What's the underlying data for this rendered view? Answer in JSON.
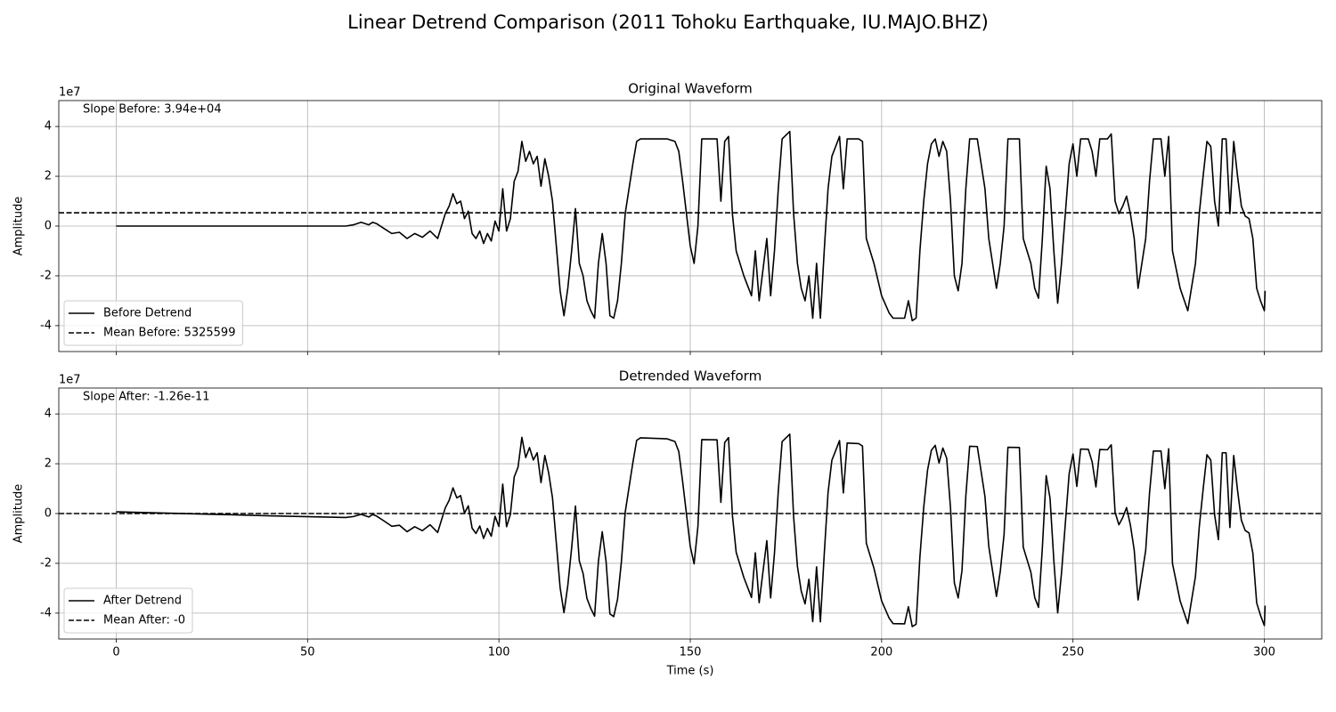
{
  "title": "Linear Detrend Comparison (2011 Tohoku Earthquake, IU.MAJO.BHZ)",
  "chart_data": [
    {
      "type": "line",
      "title": "Original Waveform",
      "ylabel": "Amplitude",
      "offset_text": "1e7",
      "annotation": "Slope Before: 3.94e+04",
      "xlim": [
        -15,
        315
      ],
      "xticks": [
        0,
        50,
        100,
        150,
        200,
        250,
        300
      ],
      "show_xtick_labels": false,
      "ylim": [
        -5.04,
        5.04
      ],
      "yticks": [
        -4,
        -2,
        0,
        2,
        4
      ],
      "grid": true,
      "legend_loc": "lower left",
      "x": [
        0,
        20,
        40,
        60,
        62,
        64,
        66,
        67,
        68,
        70,
        72,
        74,
        76,
        78,
        80,
        82,
        84,
        85,
        86,
        87,
        88,
        89,
        90,
        91,
        92,
        93,
        94,
        95,
        96,
        97,
        98,
        99,
        100,
        101,
        102,
        103,
        104,
        105,
        106,
        107,
        108,
        109,
        110,
        111,
        112,
        113,
        114,
        115,
        116,
        117,
        118,
        119,
        120,
        121,
        122,
        123,
        124,
        125,
        126,
        127,
        128,
        129,
        130,
        131,
        132,
        133,
        134,
        135,
        136,
        137,
        144,
        146,
        147,
        148,
        149,
        150,
        151,
        152,
        153,
        157,
        158,
        159,
        160,
        161,
        162,
        164,
        166,
        167,
        168,
        170,
        171,
        172,
        173,
        174,
        176,
        177,
        178,
        179,
        180,
        181,
        182,
        183,
        184,
        185,
        186,
        187,
        188,
        189,
        190,
        191,
        194,
        195,
        196,
        198,
        200,
        202,
        203,
        206,
        207,
        208,
        209,
        210,
        211,
        212,
        213,
        214,
        215,
        216,
        217,
        218,
        219,
        220,
        221,
        222,
        223,
        225,
        226,
        227,
        228,
        229,
        230,
        231,
        232,
        233,
        236,
        237,
        239,
        240,
        241,
        242,
        243,
        244,
        245,
        246,
        247,
        248,
        249,
        250,
        251,
        252,
        254,
        255,
        256,
        257,
        259,
        260,
        261,
        262,
        263,
        264,
        265,
        266,
        267,
        268,
        269,
        270,
        271,
        273,
        274,
        275,
        276,
        278,
        280,
        282,
        283,
        284,
        285,
        286,
        287,
        288,
        289,
        290,
        291,
        292,
        293,
        294,
        295,
        296,
        297,
        298,
        299,
        300,
        300.2
      ],
      "series": [
        {
          "name": "Before Detrend",
          "color": "#000000",
          "values": [
            0,
            0,
            0,
            0,
            0.05,
            0.15,
            0.05,
            0.15,
            0.1,
            -0.1,
            -0.3,
            -0.25,
            -0.5,
            -0.3,
            -0.45,
            -0.2,
            -0.5,
            0,
            0.5,
            0.8,
            1.3,
            0.9,
            1.0,
            0.3,
            0.6,
            -0.3,
            -0.5,
            -0.2,
            -0.7,
            -0.3,
            -0.6,
            0.2,
            -0.2,
            1.5,
            -0.2,
            0.3,
            1.8,
            2.2,
            3.4,
            2.6,
            3.0,
            2.5,
            2.8,
            1.6,
            2.7,
            2.0,
            1.0,
            -0.8,
            -2.6,
            -3.6,
            -2.5,
            -1.0,
            0.7,
            -1.5,
            -2.0,
            -3.0,
            -3.4,
            -3.7,
            -1.5,
            -0.3,
            -1.5,
            -3.6,
            -3.7,
            -3.0,
            -1.5,
            0.5,
            1.5,
            2.5,
            3.4,
            3.5,
            3.5,
            3.4,
            3.0,
            1.8,
            0.5,
            -0.8,
            -1.5,
            0.0,
            3.5,
            3.5,
            1.0,
            3.4,
            3.6,
            0.5,
            -1.0,
            -2.0,
            -2.8,
            -1.0,
            -3.0,
            -0.5,
            -2.8,
            -1.0,
            1.5,
            3.5,
            3.8,
            0.5,
            -1.5,
            -2.5,
            -3.0,
            -2.0,
            -3.7,
            -1.5,
            -3.7,
            -1.0,
            1.5,
            2.8,
            3.2,
            3.6,
            1.5,
            3.5,
            3.5,
            3.4,
            -0.5,
            -1.5,
            -2.8,
            -3.5,
            -3.7,
            -3.7,
            -3.0,
            -3.8,
            -3.7,
            -1.0,
            1.0,
            2.5,
            3.3,
            3.5,
            2.8,
            3.4,
            3.0,
            1.0,
            -2.0,
            -2.6,
            -1.5,
            1.5,
            3.5,
            3.5,
            2.5,
            1.5,
            -0.5,
            -1.5,
            -2.5,
            -1.5,
            0.0,
            3.5,
            3.5,
            -0.5,
            -1.5,
            -2.5,
            -2.9,
            -0.5,
            2.4,
            1.5,
            -1.0,
            -3.1,
            -1.5,
            0.5,
            2.5,
            3.3,
            2.0,
            3.5,
            3.5,
            3.0,
            2.0,
            3.5,
            3.5,
            3.7,
            1.0,
            0.5,
            0.8,
            1.2,
            0.5,
            -0.5,
            -2.5,
            -1.5,
            -0.5,
            1.8,
            3.5,
            3.5,
            2.0,
            3.6,
            -1.0,
            -2.5,
            -3.4,
            -1.5,
            0.5,
            2.0,
            3.4,
            3.2,
            1.0,
            0.0,
            3.5,
            3.5,
            0.5,
            3.4,
            2.0,
            0.8,
            0.4,
            0.3,
            -0.5,
            -2.5,
            -3.0,
            -3.4,
            -2.6
          ]
        }
      ],
      "mean_line": {
        "name": "Mean Before: 5325599",
        "value": 0.5325599,
        "color": "#000000",
        "style": "dashed"
      }
    },
    {
      "type": "line",
      "title": "Detrended Waveform",
      "ylabel": "Amplitude",
      "offset_text": "1e7",
      "annotation": "Slope After: -1.26e-11",
      "xlabel": "Time (s)",
      "xlim": [
        -15,
        315
      ],
      "xticks": [
        0,
        50,
        100,
        150,
        200,
        250,
        300
      ],
      "show_xtick_labels": true,
      "ylim": [
        -5.04,
        5.04
      ],
      "yticks": [
        -4,
        -2,
        0,
        2,
        4
      ],
      "grid": true,
      "legend_loc": "lower left",
      "x": [
        0,
        20,
        40,
        60,
        62,
        64,
        66,
        67,
        68,
        70,
        72,
        74,
        76,
        78,
        80,
        82,
        84,
        85,
        86,
        87,
        88,
        89,
        90,
        91,
        92,
        93,
        94,
        95,
        96,
        97,
        98,
        99,
        100,
        101,
        102,
        103,
        104,
        105,
        106,
        107,
        108,
        109,
        110,
        111,
        112,
        113,
        114,
        115,
        116,
        117,
        118,
        119,
        120,
        121,
        122,
        123,
        124,
        125,
        126,
        127,
        128,
        129,
        130,
        131,
        132,
        133,
        134,
        135,
        136,
        137,
        144,
        146,
        147,
        148,
        149,
        150,
        151,
        152,
        153,
        157,
        158,
        159,
        160,
        161,
        162,
        164,
        166,
        167,
        168,
        170,
        171,
        172,
        173,
        174,
        176,
        177,
        178,
        179,
        180,
        181,
        182,
        183,
        184,
        185,
        186,
        187,
        188,
        189,
        190,
        191,
        194,
        195,
        196,
        198,
        200,
        202,
        203,
        206,
        207,
        208,
        209,
        210,
        211,
        212,
        213,
        214,
        215,
        216,
        217,
        218,
        219,
        220,
        221,
        222,
        223,
        225,
        226,
        227,
        228,
        229,
        230,
        231,
        232,
        233,
        236,
        237,
        239,
        240,
        241,
        242,
        243,
        244,
        245,
        246,
        247,
        248,
        249,
        250,
        251,
        252,
        254,
        255,
        256,
        257,
        259,
        260,
        261,
        262,
        263,
        264,
        265,
        266,
        267,
        268,
        269,
        270,
        271,
        273,
        274,
        275,
        276,
        278,
        280,
        282,
        283,
        284,
        285,
        286,
        287,
        288,
        289,
        290,
        291,
        292,
        293,
        294,
        295,
        296,
        297,
        298,
        299,
        300,
        300.2
      ],
      "series": [
        {
          "name": "After Detrend",
          "color": "#000000",
          "values": [
            0.07,
            -0.01,
            -0.09,
            -0.16,
            -0.12,
            -0.03,
            -0.14,
            -0.04,
            -0.1,
            -0.3,
            -0.51,
            -0.47,
            -0.73,
            -0.53,
            -0.69,
            -0.45,
            -0.76,
            -0.26,
            0.23,
            0.53,
            1.03,
            0.63,
            0.72,
            0.02,
            0.31,
            -0.59,
            -0.8,
            -0.5,
            -1.0,
            -0.6,
            -0.91,
            -0.11,
            -0.52,
            1.18,
            -0.53,
            -0.03,
            1.47,
            1.86,
            3.06,
            2.25,
            2.65,
            2.15,
            2.44,
            1.24,
            2.33,
            1.63,
            0.63,
            -1.18,
            -2.98,
            -3.98,
            -2.89,
            -1.39,
            0.3,
            -1.9,
            -2.41,
            -3.41,
            -3.81,
            -4.12,
            -1.92,
            -0.73,
            -1.93,
            -4.03,
            -4.14,
            -3.44,
            -1.94,
            0.05,
            1.05,
            2.04,
            2.94,
            3.04,
            3.0,
            2.89,
            2.49,
            1.29,
            -0.01,
            -1.32,
            -2.02,
            -0.52,
            2.97,
            2.96,
            0.45,
            2.85,
            3.05,
            -0.05,
            -1.56,
            -2.57,
            -3.37,
            -1.58,
            -3.58,
            -1.09,
            -3.39,
            -1.6,
            0.9,
            2.89,
            3.19,
            -0.12,
            -2.12,
            -3.12,
            -3.63,
            -2.64,
            -4.34,
            -2.14,
            -4.35,
            -1.65,
            0.84,
            2.14,
            2.53,
            2.93,
            0.83,
            2.83,
            2.81,
            2.71,
            -1.19,
            -2.2,
            -3.51,
            -4.21,
            -4.42,
            -4.43,
            -3.74,
            -4.54,
            -4.45,
            -1.75,
            0.25,
            1.74,
            2.54,
            2.74,
            2.03,
            2.63,
            2.22,
            0.22,
            -2.78,
            -3.39,
            -2.29,
            0.7,
            2.7,
            2.69,
            1.69,
            0.68,
            -1.32,
            -2.32,
            -3.33,
            -2.33,
            -0.83,
            2.66,
            2.65,
            -1.35,
            -2.36,
            -3.37,
            -3.77,
            -1.37,
            1.52,
            0.62,
            -1.89,
            -3.99,
            -2.39,
            -0.4,
            1.6,
            2.39,
            1.09,
            2.59,
            2.58,
            2.08,
            1.07,
            2.57,
            2.56,
            2.76,
            0.05,
            -0.45,
            -0.16,
            0.24,
            -0.46,
            -1.47,
            -3.47,
            -2.48,
            -1.48,
            0.82,
            2.51,
            2.51,
            1.0,
            2.6,
            -2.01,
            -3.51,
            -4.42,
            -2.53,
            -0.53,
            0.96,
            2.36,
            2.15,
            -0.05,
            -1.05,
            2.44,
            2.44,
            -0.56,
            2.33,
            0.93,
            -0.27,
            -0.68,
            -0.78,
            -1.59,
            -3.59,
            -4.09,
            -4.5,
            -3.7
          ]
        }
      ],
      "mean_line": {
        "name": "Mean After: -0",
        "value": 0,
        "color": "#000000",
        "style": "dashed"
      }
    }
  ]
}
